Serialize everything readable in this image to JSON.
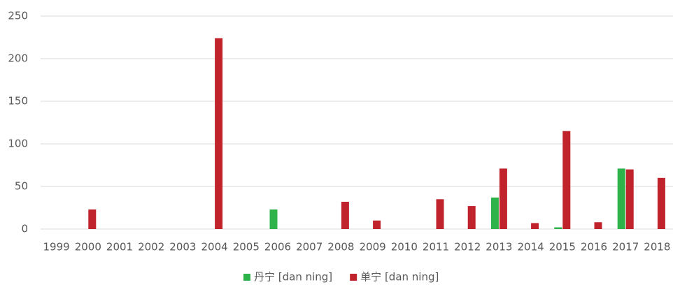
{
  "chart_data": {
    "type": "bar",
    "categories": [
      "1999",
      "2000",
      "2001",
      "2002",
      "2003",
      "2004",
      "2005",
      "2006",
      "2007",
      "2008",
      "2009",
      "2010",
      "2011",
      "2012",
      "2013",
      "2014",
      "2015",
      "2016",
      "2017",
      "2018"
    ],
    "series": [
      {
        "name": "丹宁 [dan ning]",
        "color": "#2db34a",
        "values": [
          0,
          0,
          0,
          0,
          0,
          0,
          0,
          23,
          0,
          0,
          0,
          0,
          0,
          0,
          37,
          0,
          2,
          0,
          71,
          0
        ]
      },
      {
        "name": "单宁 [dan ning]",
        "color": "#c0232b",
        "values": [
          0,
          23,
          0,
          0,
          0,
          224,
          0,
          0,
          0,
          32,
          10,
          0,
          35,
          27,
          71,
          7,
          115,
          8,
          70,
          60
        ]
      }
    ],
    "ylim": [
      0,
      250
    ],
    "yticks": [
      0,
      50,
      100,
      150,
      200,
      250
    ],
    "grid": true,
    "legend": "bottom"
  }
}
